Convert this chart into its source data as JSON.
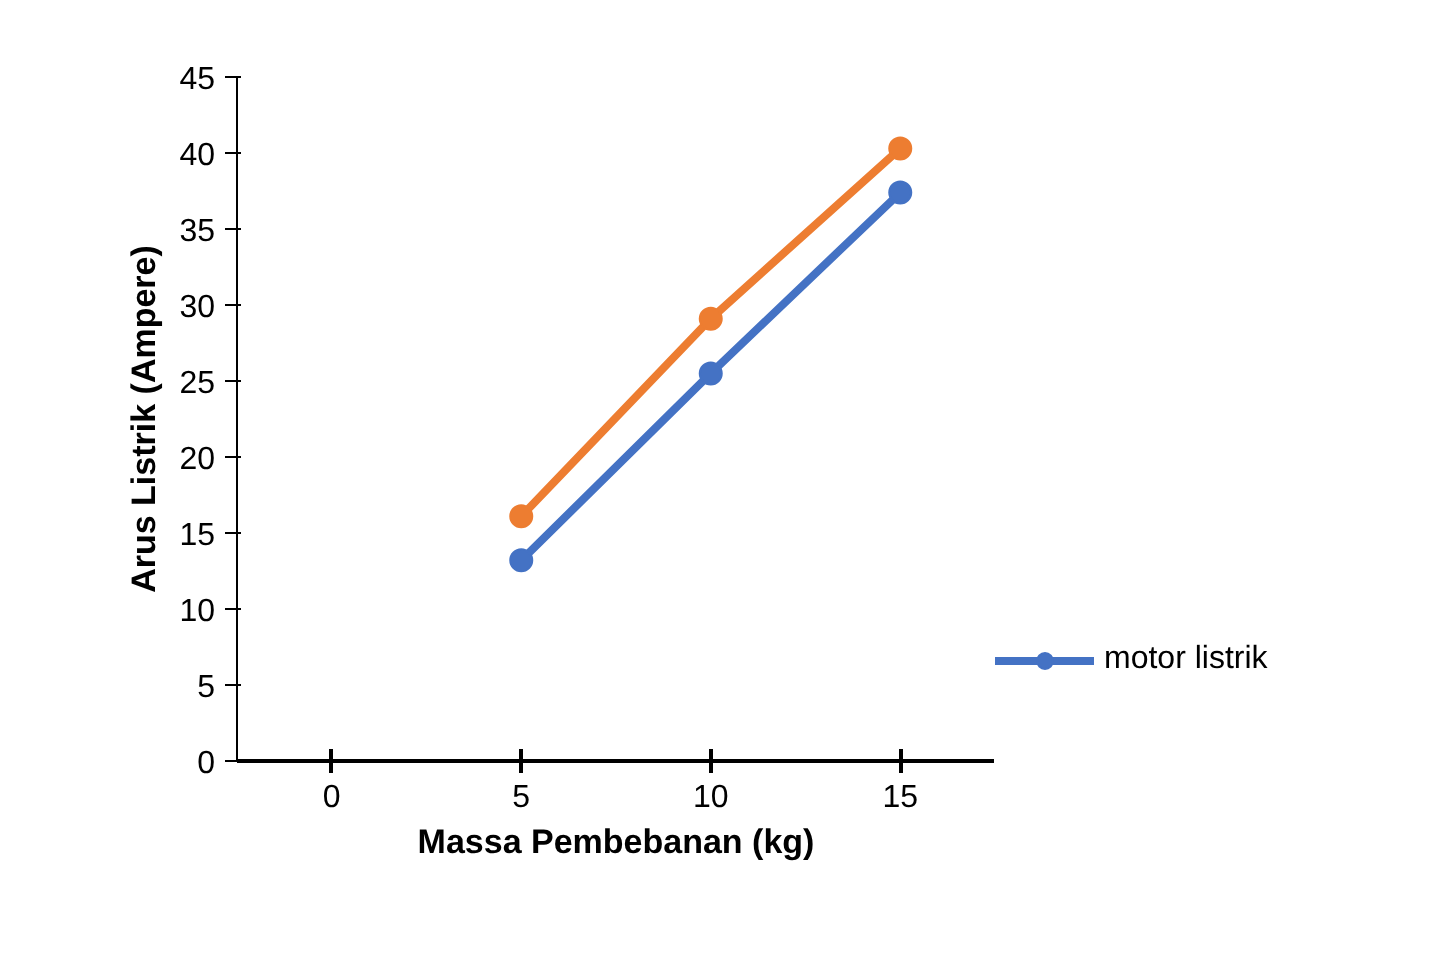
{
  "chart_data": {
    "type": "line",
    "xlabel": "Massa Pembebanan (kg)",
    "ylabel": "Arus Listrik (Ampere)",
    "x": [
      5,
      10,
      15
    ],
    "series": [
      {
        "name": "motor listrik",
        "color": "#4472c4",
        "values": [
          13.2,
          25.5,
          37.4
        ]
      },
      {
        "color": "#ed7d31",
        "values": [
          16.1,
          29.1,
          40.3
        ]
      }
    ],
    "xlim": [
      -2.5,
      17.5
    ],
    "xticks": [
      0,
      5,
      10,
      15
    ],
    "ylim": [
      0,
      45
    ],
    "yticks": [
      0,
      5,
      10,
      15,
      20,
      25,
      30,
      35,
      40,
      45
    ],
    "grid": false,
    "legend": "right",
    "marker": "circle",
    "line_style": "solid"
  }
}
